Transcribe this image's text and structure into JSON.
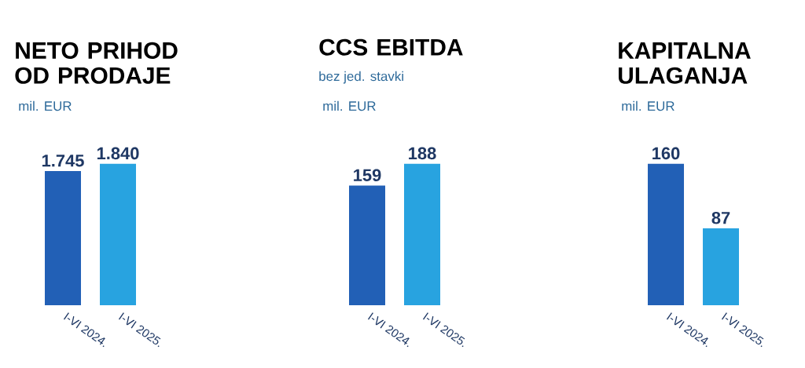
{
  "chart_data": [
    {
      "type": "bar",
      "title": "NETO PRIHOD OD PRODAJE",
      "ylabel": "mil. EUR",
      "categories": [
        "I-VI 2024.",
        "I-VI 2025."
      ],
      "values": [
        1745,
        1840
      ],
      "colors": [
        "#2260b6",
        "#28a3e0"
      ],
      "value_labels": [
        "1.745",
        "1.840"
      ],
      "tick_labels": "x"
    },
    {
      "type": "bar",
      "title": "CCS EBITDA",
      "subtitle": "bez jed. stavki",
      "ylabel": "mil. EUR",
      "categories": [
        "I-VI 2024.",
        "I-VI 2025."
      ],
      "values": [
        159,
        188
      ],
      "colors": [
        "#2260b6",
        "#28a3e0"
      ],
      "value_labels": [
        "159",
        "188"
      ],
      "tick_labels": "x"
    },
    {
      "type": "bar",
      "title": "KAPITALNA ULAGANJA",
      "ylabel": "mil. EUR",
      "categories": [
        "I-VI 2024.",
        "I-VI 2025."
      ],
      "values": [
        160,
        87
      ],
      "colors": [
        "#2260b6",
        "#28a3e0"
      ],
      "value_labels": [
        "160",
        "87"
      ],
      "tick_labels": "x"
    }
  ]
}
